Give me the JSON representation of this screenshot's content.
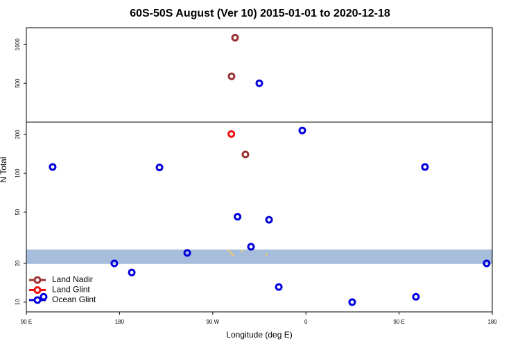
{
  "chart_data": {
    "type": "scatter",
    "title": "60S-50S August (Ver 10)   2015-01-01 to 2020-12-18",
    "xlabel": "Longitude (deg E)",
    "ylabel": "N Total",
    "xlim": [
      90,
      540
    ],
    "xticks": [
      {
        "value": 90,
        "label": "90 E"
      },
      180,
      {
        "value": 270,
        "label": "90 W"
      },
      {
        "value": 360,
        "label": "0"
      },
      {
        "value": 450,
        "label": "90 E"
      },
      {
        "value": 540,
        "label": "180"
      }
    ],
    "ylim": [
      8.4,
      1350
    ],
    "yscale": "log",
    "yticks": [
      10,
      20,
      50,
      100,
      200,
      500,
      1000
    ],
    "axis_break": 250,
    "band": {
      "range": [
        19.8,
        25.6
      ],
      "color": "#a6bddb"
    },
    "grid": false,
    "legend": "bottom-left",
    "series": [
      {
        "name": "Land Nadir",
        "color": "#993333",
        "x": [
          291.6,
          288.2,
          301.6
        ],
        "values": [
          1130,
          566,
          140
        ]
      },
      {
        "name": "Land Glint",
        "color": "#ee1111",
        "x": [
          288
        ],
        "values": [
          202
        ]
      },
      {
        "name": "Ocean Glint",
        "color": "#0000dd",
        "x": [
          315,
          356.5,
          115.4,
          218.6,
          475,
          294,
          324.4,
          307,
          245.4,
          175,
          191.8,
          534.6,
          333.8,
          404.7,
          466.3,
          106.7
        ],
        "values": [
          500,
          215,
          112,
          111,
          112,
          46,
          43.6,
          26.9,
          24.1,
          20,
          17,
          20,
          13.1,
          10,
          11,
          11
        ]
      },
      {
        "color": "#f5c96b",
        "x": [
          285.5,
          287.5,
          289.5,
          298,
          322
        ],
        "values": [
          25,
          24,
          23.3,
          25,
          23.4
        ]
      }
    ]
  }
}
